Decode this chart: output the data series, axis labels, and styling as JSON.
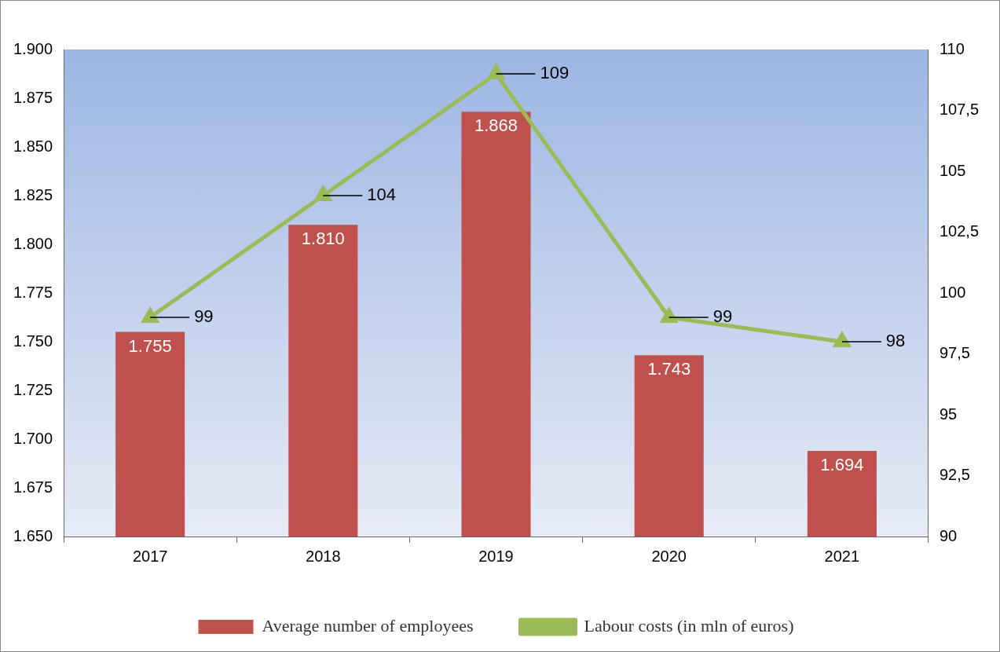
{
  "chart_data": {
    "type": "bar",
    "categories": [
      "2017",
      "2018",
      "2019",
      "2020",
      "2021"
    ],
    "series": [
      {
        "name": "Average number of employees",
        "color": "#c0504d",
        "values": [
          1755,
          1810,
          1868,
          1743,
          1694
        ],
        "value_labels": [
          "1.755",
          "1.810",
          "1.868",
          "1.743",
          "1.694"
        ]
      },
      {
        "name": "Labour costs (in mln of euros)",
        "type": "line",
        "axis": "y2",
        "color": "#9bbb59",
        "marker": "triangle",
        "values": [
          99,
          104,
          109,
          99,
          98
        ],
        "value_labels": [
          "99",
          "104",
          "109",
          "99",
          "98"
        ]
      }
    ],
    "ylim": [
      1650,
      1900
    ],
    "yticks": [
      {
        "value": 1650,
        "label": "1.650"
      },
      {
        "value": 1675,
        "label": "1.675"
      },
      {
        "value": 1700,
        "label": "1.700"
      },
      {
        "value": 1725,
        "label": "1.725"
      },
      {
        "value": 1750,
        "label": "1.750"
      },
      {
        "value": 1775,
        "label": "1.775"
      },
      {
        "value": 1800,
        "label": "1.800"
      },
      {
        "value": 1825,
        "label": "1.825"
      },
      {
        "value": 1850,
        "label": "1.850"
      },
      {
        "value": 1875,
        "label": "1.875"
      },
      {
        "value": 1900,
        "label": "1.900"
      }
    ],
    "y2lim": [
      90,
      110
    ],
    "y2ticks": [
      90,
      {
        "value": 92.5,
        "label": "92,5"
      },
      95,
      {
        "value": 97.5,
        "label": "97,5"
      },
      100,
      {
        "value": 102.5,
        "label": "102,5"
      },
      105,
      {
        "value": 107.5,
        "label": "107,5"
      },
      110
    ],
    "grid": false,
    "legend": "bottom"
  }
}
